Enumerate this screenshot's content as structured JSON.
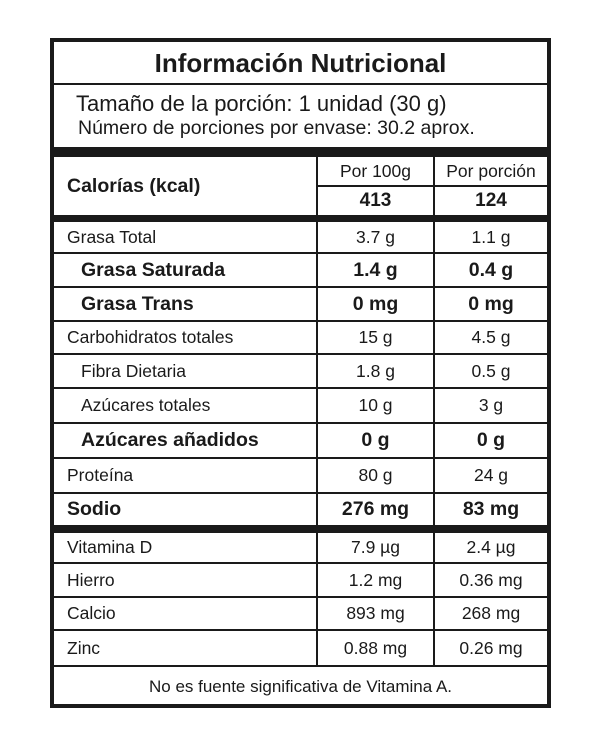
{
  "title": "Información Nutricional",
  "serving_size": "Tamaño de la porción: 1 unidad (30 g)",
  "servings_per_container": "Número de porciones por envase: 30.2 aprox.",
  "calories": {
    "label": "Calorías (kcal)",
    "col1_header": "Por 100g",
    "col2_header": "Por porción",
    "per_100g": "413",
    "per_serving": "124"
  },
  "nutrients": [
    {
      "name": "Grasa Total",
      "per_100g": "3.7 g",
      "per_serving": "1.1 g"
    },
    {
      "name": "Grasa Saturada",
      "per_100g": "1.4 g",
      "per_serving": "0.4 g"
    },
    {
      "name": "Grasa Trans",
      "per_100g": "0 mg",
      "per_serving": "0 mg"
    },
    {
      "name": "Carbohidratos totales",
      "per_100g": "15 g",
      "per_serving": "4.5 g"
    },
    {
      "name": "Fibra Dietaria",
      "per_100g": "1.8 g",
      "per_serving": "0.5 g"
    },
    {
      "name": "Azúcares totales",
      "per_100g": "10 g",
      "per_serving": "3 g"
    },
    {
      "name": "Azúcares añadidos",
      "per_100g": "0 g",
      "per_serving": "0 g"
    },
    {
      "name": "Proteína",
      "per_100g": "80 g",
      "per_serving": "24 g"
    },
    {
      "name": "Sodio",
      "per_100g": "276 mg",
      "per_serving": "83 mg"
    }
  ],
  "micronutrients": [
    {
      "name": "Vitamina D",
      "per_100g": "7.9 µg",
      "per_serving": "2.4 µg"
    },
    {
      "name": "Hierro",
      "per_100g": "1.2 mg",
      "per_serving": "0.36 mg"
    },
    {
      "name": "Calcio",
      "per_100g": "893 mg",
      "per_serving": "268 mg"
    },
    {
      "name": "Zinc",
      "per_100g": "0.88 mg",
      "per_serving": "0.26 mg"
    }
  ],
  "footer": "No es fuente significativa de Vitamina A."
}
